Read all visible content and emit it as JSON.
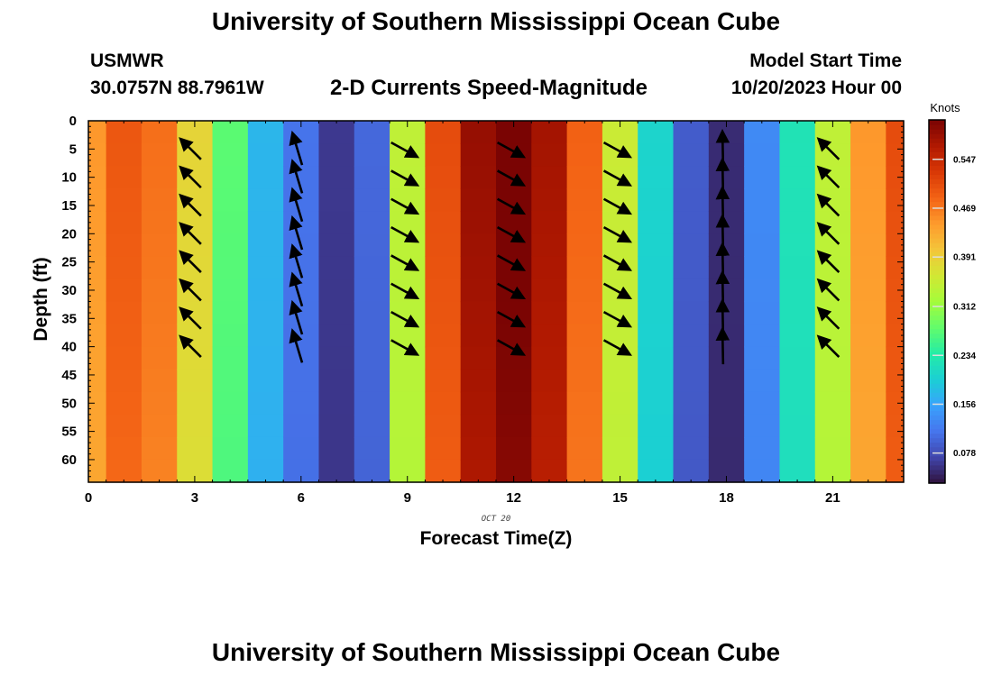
{
  "header": {
    "title": "University of Southern Mississippi Ocean Cube",
    "station": "USMWR",
    "coords": "30.0757N  88.7961W",
    "plot_title": "2-D Currents Speed-Magnitude",
    "start_label": "Model Start Time",
    "start_value": "10/20/2023 Hour 00"
  },
  "footer": {
    "title": "University of Southern Mississippi Ocean Cube"
  },
  "chart_data": {
    "type": "heatmap",
    "title": "2-D Currents Speed-Magnitude",
    "xlabel": "Forecast Time(Z)",
    "ylabel": "Depth (ft)",
    "date_label": "OCT 20",
    "xlim": [
      0,
      23
    ],
    "ylim": [
      0,
      64
    ],
    "x_ticks": [
      0,
      3,
      6,
      9,
      12,
      15,
      18,
      21
    ],
    "y_ticks": [
      0,
      5,
      10,
      15,
      20,
      25,
      30,
      35,
      40,
      45,
      50,
      55,
      60
    ],
    "colorbar": {
      "label": "Knots",
      "min": 0.03,
      "max": 0.61,
      "ticks": [
        "0.078",
        "0.156",
        "0.234",
        "0.312",
        "0.391",
        "0.469",
        "0.547"
      ],
      "colors": [
        "#30123b",
        "#4145ab",
        "#4675ed",
        "#39a2fc",
        "#1bcfd4",
        "#24eca6",
        "#61fc6c",
        "#a4fc3b",
        "#d1e834",
        "#f3c63a",
        "#fe9b2d",
        "#f36315",
        "#d93806",
        "#b11901",
        "#7a0403"
      ]
    },
    "hours": [
      0,
      1,
      2,
      3,
      4,
      5,
      6,
      7,
      8,
      9,
      10,
      11,
      12,
      13,
      14,
      15,
      16,
      17,
      18,
      19,
      20,
      21,
      22,
      23
    ],
    "speed_by_hour": [
      0.44,
      0.49,
      0.47,
      0.38,
      0.27,
      0.17,
      0.11,
      0.06,
      0.1,
      0.34,
      0.5,
      0.58,
      0.61,
      0.57,
      0.48,
      0.35,
      0.2,
      0.09,
      0.05,
      0.13,
      0.22,
      0.34,
      0.44,
      0.5
    ],
    "arrow_depths": [
      5,
      10,
      15,
      20,
      25,
      30,
      35,
      40
    ],
    "vectors": [
      {
        "hour": 3,
        "dir": "NW",
        "depths": [
          5,
          10,
          15,
          20,
          25,
          30,
          35,
          40
        ]
      },
      {
        "hour": 6,
        "dir": "NNW",
        "depths": [
          5,
          10,
          15,
          20,
          25,
          30,
          35,
          40
        ]
      },
      {
        "hour": 9,
        "dir": "SE",
        "depths": [
          5,
          10,
          15,
          20,
          25,
          30,
          35,
          40
        ]
      },
      {
        "hour": 12,
        "dir": "SE",
        "depths": [
          5,
          10,
          15,
          20,
          25,
          30,
          35,
          40
        ]
      },
      {
        "hour": 15,
        "dir": "SE",
        "depths": [
          5,
          10,
          15,
          20,
          25,
          30,
          35,
          40
        ]
      },
      {
        "hour": 18,
        "dir": "N",
        "depths": [
          5,
          10,
          15,
          20,
          25,
          30,
          35,
          40
        ]
      },
      {
        "hour": 21,
        "dir": "NW",
        "depths": [
          5,
          10,
          15,
          20,
          25,
          30,
          35,
          40
        ]
      }
    ]
  }
}
